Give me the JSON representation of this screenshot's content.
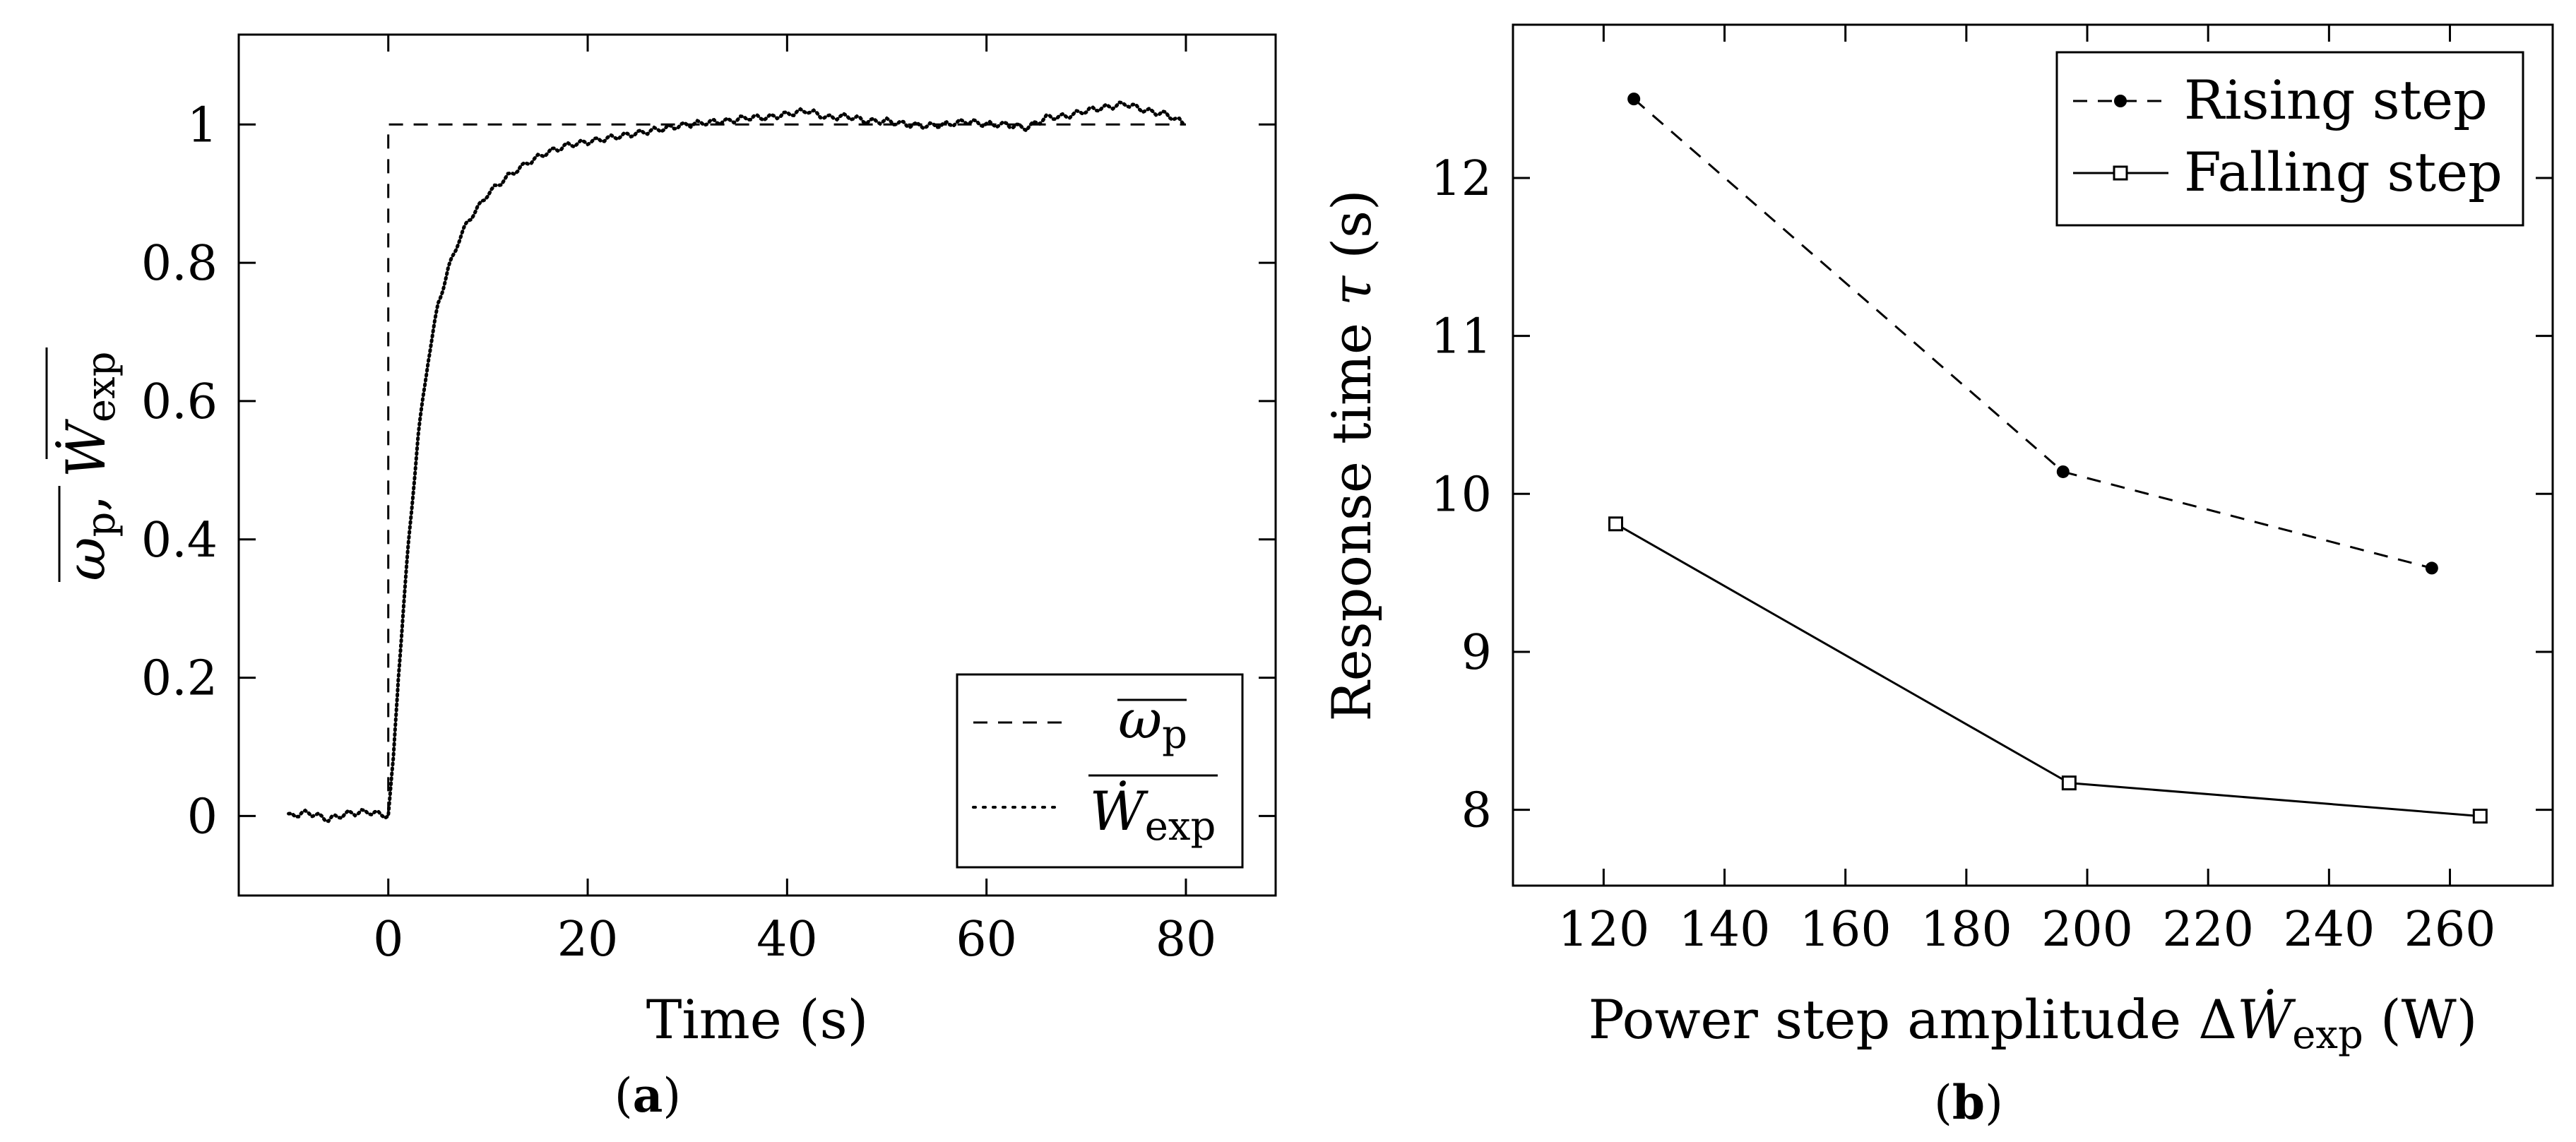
{
  "chart_data": [
    {
      "panel": "a",
      "type": "line",
      "caption": "(a)",
      "caption_parts": [
        "(",
        "a",
        ")"
      ],
      "xlabel": "Time (s)",
      "ylabel_parts": [
        "ω",
        "p",
        ", ",
        "Ẇ",
        "exp"
      ],
      "xlim": [
        -15,
        89
      ],
      "ylim": [
        -0.115,
        1.13
      ],
      "xticks": [
        0,
        20,
        40,
        60,
        80
      ],
      "xtick_labels": [
        "0",
        "20",
        "40",
        "60",
        "80"
      ],
      "yticks": [
        0,
        0.2,
        0.4,
        0.6,
        0.8,
        1
      ],
      "ytick_labels": [
        "0",
        "0.2",
        "0.4",
        "0.6",
        "0.8",
        "1"
      ],
      "legend_position": "bottom-right",
      "series": [
        {
          "name": "ω_p (normalized setpoint)",
          "legend_parts": [
            "ω",
            "p"
          ],
          "style": "dashed",
          "x": [
            0,
            0,
            80
          ],
          "y": [
            0,
            1,
            1
          ]
        },
        {
          "name": "Ẇ_exp (normalized measured power)",
          "legend_parts": [
            "Ẇ",
            "exp"
          ],
          "style": "dotted",
          "x": [
            -10,
            -8,
            -6,
            -4,
            -2,
            0,
            0.5,
            1,
            2,
            3,
            4,
            5,
            6,
            7,
            8,
            10,
            12,
            14,
            16,
            18,
            20,
            22,
            24,
            26,
            28,
            30,
            32,
            34,
            36,
            38,
            40,
            42,
            44,
            46,
            48,
            50,
            52,
            54,
            56,
            58,
            60,
            62,
            64,
            66,
            68,
            70,
            72,
            74,
            76,
            78,
            80
          ],
          "y": [
            0.0,
            0.005,
            -0.005,
            0.004,
            0.006,
            0.0,
            0.08,
            0.2,
            0.39,
            0.55,
            0.66,
            0.74,
            0.79,
            0.83,
            0.86,
            0.9,
            0.925,
            0.945,
            0.96,
            0.97,
            0.975,
            0.98,
            0.985,
            0.99,
            0.995,
            1.0,
            1.003,
            1.005,
            1.01,
            1.01,
            1.015,
            1.02,
            1.01,
            1.012,
            1.005,
            1.005,
            1.0,
            0.998,
            1.0,
            1.005,
            1.0,
            1.0,
            0.995,
            1.01,
            1.012,
            1.02,
            1.025,
            1.03,
            1.02,
            1.015,
            1.0
          ]
        }
      ]
    },
    {
      "panel": "b",
      "type": "line",
      "caption": "(b)",
      "caption_parts": [
        "(",
        "b",
        ")"
      ],
      "xlabel_parts": [
        "Power step amplitude Δ",
        "Ẇ",
        "exp",
        " (W)"
      ],
      "ylabel_parts": [
        "Response time ",
        "τ",
        " (s)"
      ],
      "xlim": [
        105,
        277
      ],
      "ylim": [
        7.52,
        12.97
      ],
      "xticks": [
        120,
        140,
        160,
        180,
        200,
        220,
        240,
        260
      ],
      "xtick_labels": [
        "120",
        "140",
        "160",
        "180",
        "200",
        "220",
        "240",
        "260"
      ],
      "yticks": [
        8,
        9,
        10,
        11,
        12
      ],
      "ytick_labels": [
        "8",
        "9",
        "10",
        "11",
        "12"
      ],
      "legend_position": "top-right",
      "series": [
        {
          "name": "Rising step",
          "style": "dashed",
          "marker": "filled-circle",
          "x": [
            125,
            196,
            257
          ],
          "y": [
            12.5,
            10.14,
            9.53
          ]
        },
        {
          "name": "Falling step",
          "style": "solid",
          "marker": "open-square",
          "x": [
            122,
            197,
            265
          ],
          "y": [
            9.81,
            8.17,
            7.96
          ]
        }
      ]
    }
  ]
}
